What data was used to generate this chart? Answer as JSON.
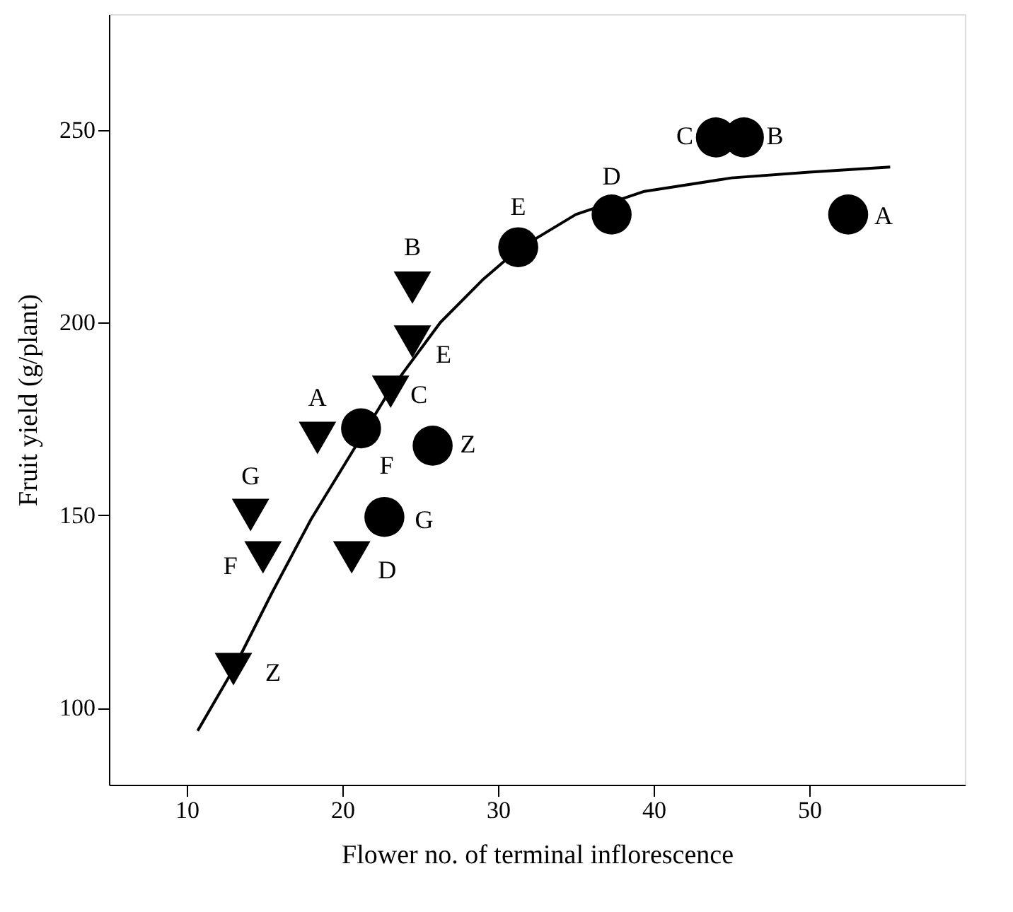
{
  "chart_data": {
    "type": "scatter",
    "xlabel": "Flower no. of terminal inflorescence",
    "ylabel": "Fruit yield (g/plant)",
    "xlim": [
      5,
      60
    ],
    "xticks": [
      10,
      20,
      30,
      40,
      50
    ],
    "ylim": [
      80,
      280
    ],
    "yticks": [
      100,
      150,
      200,
      250
    ],
    "grid": false,
    "series": [
      {
        "marker": "circle",
        "color": "#000000",
        "x": [
          44,
          45.8,
          52.5,
          37.3,
          31.3,
          21.2,
          25.8,
          22.7
        ],
        "values": [
          248,
          248,
          228,
          228,
          219.5,
          172.5,
          168,
          149.5
        ]
      },
      {
        "marker": "triangle",
        "color": "#000000",
        "x": [
          24.5,
          24.5,
          23.1,
          18.4,
          14.1,
          14.9,
          20.6,
          13
        ],
        "values": [
          209,
          195,
          182,
          170,
          150,
          139,
          139,
          110
        ]
      },
      {
        "type": "line",
        "line_style": "solid",
        "color": "#000000",
        "x": [
          10.7,
          13,
          15.5,
          18,
          20.5,
          23,
          26.3,
          29,
          31.3,
          35,
          39.4,
          45,
          50,
          55.2
        ],
        "values": [
          94,
          110,
          130,
          149,
          165.5,
          182,
          200,
          211,
          219,
          228,
          234,
          237.5,
          239,
          240.3
        ]
      }
    ],
    "annotations": [
      {
        "text": "C",
        "x": 44,
        "y": 248
      },
      {
        "text": "B",
        "x": 45.8,
        "y": 248
      },
      {
        "text": "A",
        "x": 52.5,
        "y": 228
      },
      {
        "text": "D",
        "x": 37.3,
        "y": 228
      },
      {
        "text": "E",
        "x": 31.3,
        "y": 219.5
      },
      {
        "text": "F",
        "x": 21.2,
        "y": 172.5
      },
      {
        "text": "Z",
        "x": 25.8,
        "y": 168
      },
      {
        "text": "G",
        "x": 22.7,
        "y": 149.5
      },
      {
        "text": "B",
        "x": 24.5,
        "y": 209
      },
      {
        "text": "E",
        "x": 24.5,
        "y": 195
      },
      {
        "text": "C",
        "x": 23.1,
        "y": 182
      },
      {
        "text": "A",
        "x": 18.4,
        "y": 170
      },
      {
        "text": "G",
        "x": 14.1,
        "y": 150
      },
      {
        "text": "F",
        "x": 14.9,
        "y": 139
      },
      {
        "text": "D",
        "x": 20.6,
        "y": 139
      },
      {
        "text": "Z",
        "x": 13,
        "y": 110
      }
    ]
  }
}
